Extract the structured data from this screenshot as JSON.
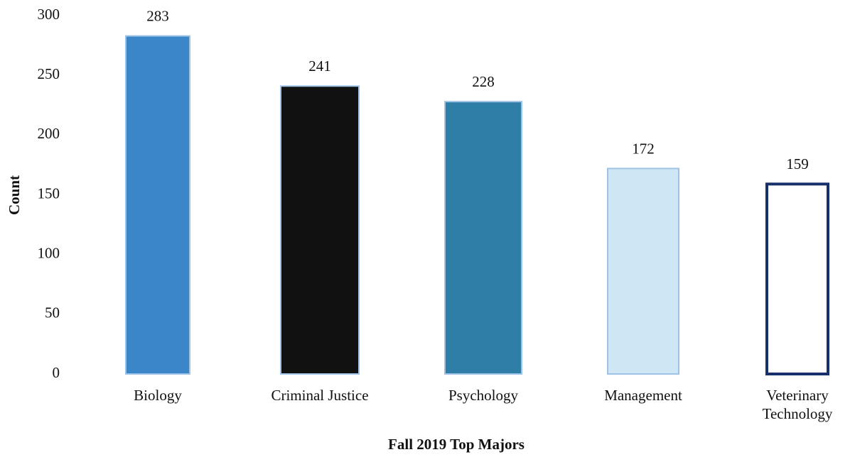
{
  "chart_data": {
    "type": "bar",
    "title": "Fall 2019 Top Majors",
    "y_label": "Count",
    "categories": [
      "Biology",
      "Criminal Justice",
      "Psychology",
      "Management",
      "Veterinary Technology"
    ],
    "values": [
      283,
      241,
      228,
      172,
      159
    ],
    "colors": [
      "#3b86c8",
      "#111111",
      "#2f7ea8",
      "#cfe6f5",
      "#ffffff"
    ],
    "ylim": [
      0,
      300
    ],
    "yticks": [
      0,
      50,
      100,
      150,
      200,
      250,
      300
    ],
    "grid": false
  }
}
